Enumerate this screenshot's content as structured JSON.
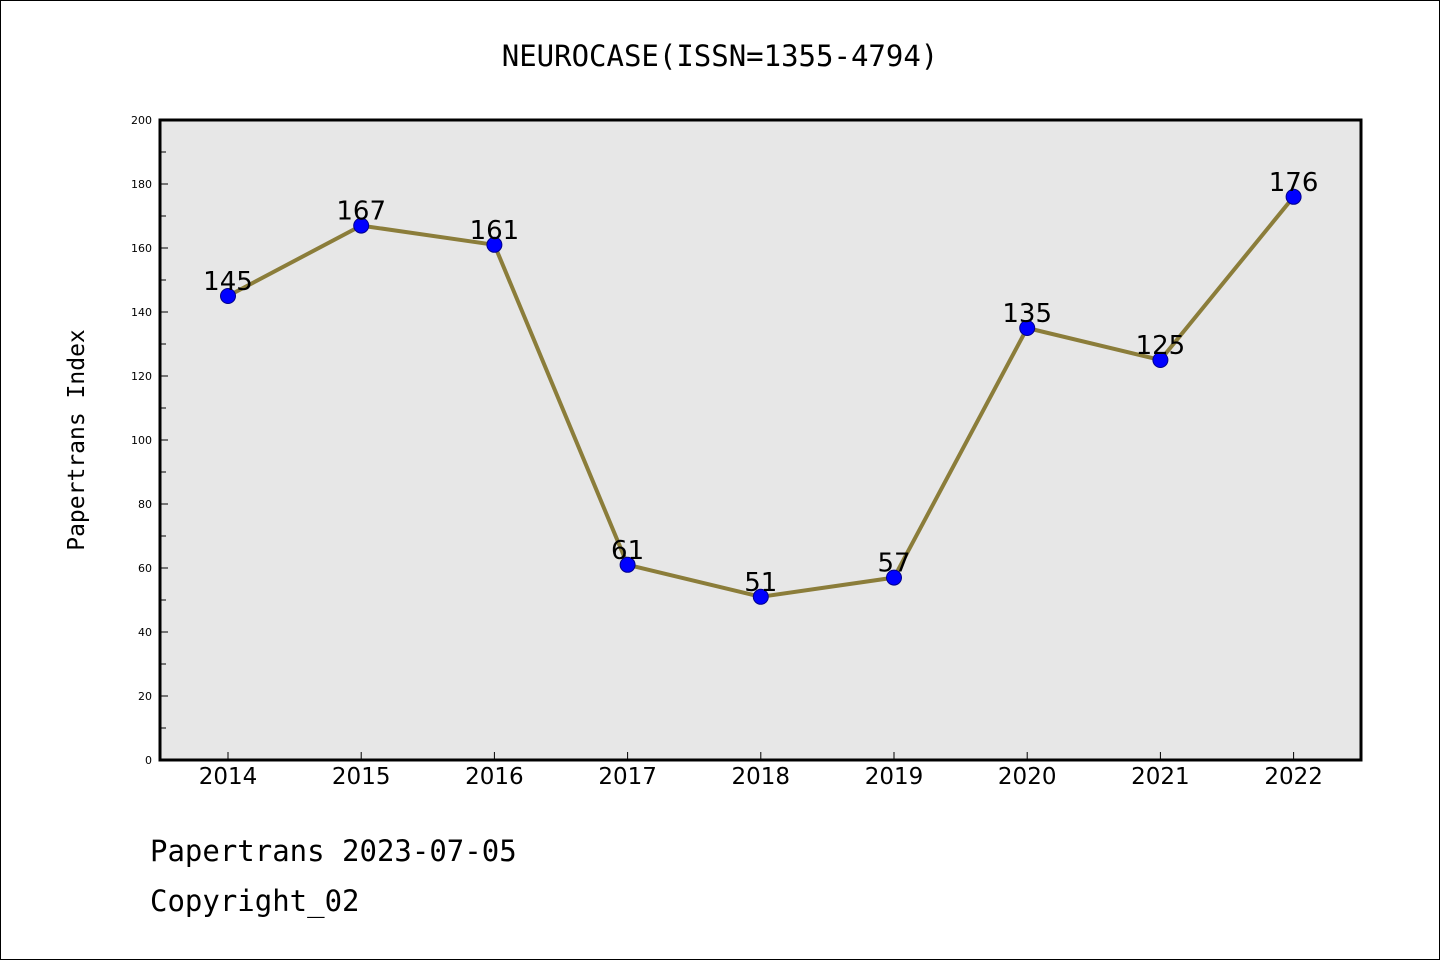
{
  "chart_data": {
    "type": "line",
    "title": "NEUROCASE(ISSN=1355-4794)",
    "xlabel": "",
    "ylabel": "Papertrans Index",
    "ylim": [
      0,
      200
    ],
    "yticks": [
      0,
      20,
      40,
      60,
      80,
      100,
      120,
      140,
      160,
      180,
      200
    ],
    "categories": [
      "2014",
      "2015",
      "2016",
      "2017",
      "2018",
      "2019",
      "2020",
      "2021",
      "2022"
    ],
    "series": [
      {
        "values": [
          145,
          167,
          161,
          61,
          51,
          57,
          135,
          125,
          176
        ],
        "line_color": "#8b7d3a",
        "marker_color": "#0000ff"
      }
    ],
    "data_labels": true,
    "grid": false,
    "plot_background": "#e7e7e7"
  },
  "footer": {
    "line1": "Papertrans 2023-07-05",
    "line2": "Copyright_02"
  }
}
